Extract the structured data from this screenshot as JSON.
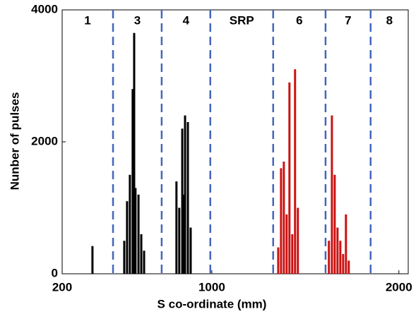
{
  "chart_data": {
    "type": "bar",
    "x_label": "S co-ordinate (mm)",
    "y_label": "Nunber of pulses",
    "xlim": [
      200,
      2050
    ],
    "xticks": [
      200,
      1000,
      2000
    ],
    "ylim": [
      0,
      4000
    ],
    "yticks": [
      0,
      2000,
      4000
    ],
    "boundaries": [
      472,
      732,
      992,
      1328,
      1608,
      1849
    ],
    "boundary_color": "#4466bb",
    "zones": [
      "1",
      "3",
      "4",
      "SRP",
      "6",
      "7",
      "8"
    ],
    "series": [
      {
        "color": "#000000",
        "x": [
          362,
          532,
          547,
          562,
          577,
          585,
          592,
          608,
          623,
          638,
          811,
          826,
          842,
          850,
          857,
          872,
          887
        ],
        "values": [
          420,
          500,
          1100,
          1500,
          2800,
          3650,
          1300,
          1200,
          600,
          350,
          1400,
          1000,
          2200,
          1200,
          2400,
          2300,
          700
        ]
      },
      {
        "color": "#cc1111",
        "x": [
          1355,
          1370,
          1385,
          1400,
          1415,
          1430,
          1445,
          1460,
          1626,
          1642,
          1657,
          1672,
          1687,
          1702,
          1717,
          1732
        ],
        "values": [
          400,
          1600,
          1700,
          900,
          2900,
          600,
          3100,
          1000,
          500,
          2400,
          1500,
          700,
          500,
          300,
          900,
          200
        ]
      }
    ]
  }
}
